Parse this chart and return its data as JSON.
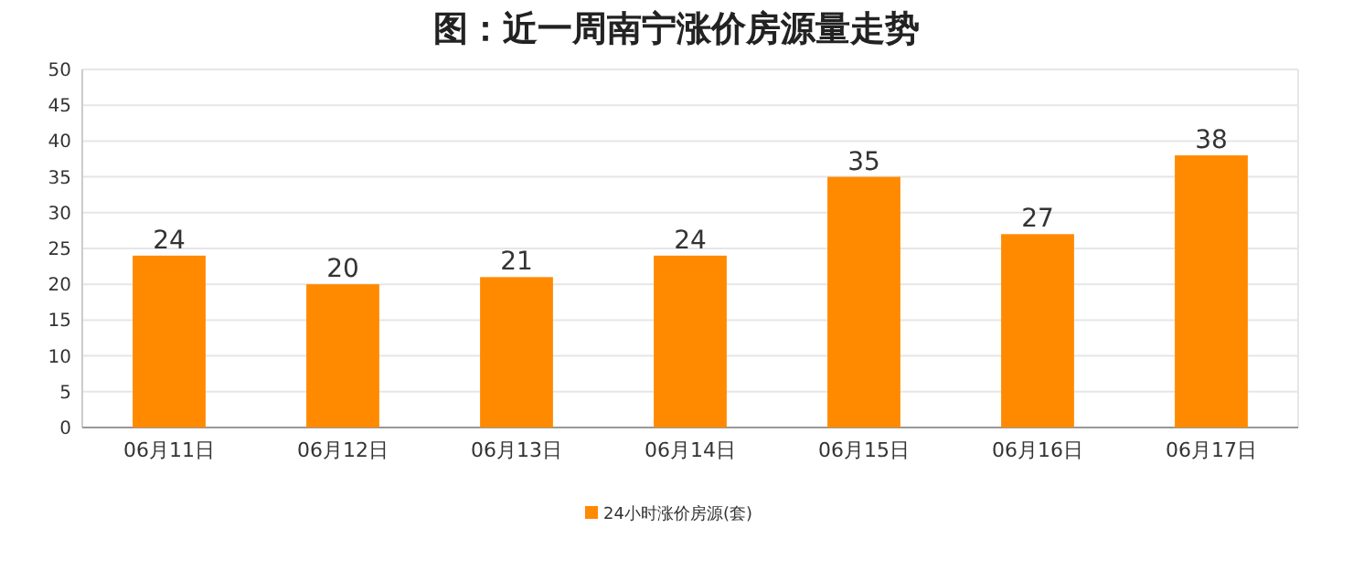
{
  "chart_data": {
    "type": "bar",
    "title": "图：近一周南宁涨价房源量走势",
    "categories": [
      "06月11日",
      "06月12日",
      "06月13日",
      "06月14日",
      "06月15日",
      "06月16日",
      "06月17日"
    ],
    "series": [
      {
        "name": "24小时涨价房源(套)",
        "color": "#ff8a00",
        "values": [
          24,
          20,
          21,
          24,
          35,
          27,
          38
        ]
      }
    ],
    "ylim": [
      0,
      50
    ],
    "yticks": [
      0,
      5,
      10,
      15,
      20,
      25,
      30,
      35,
      40,
      45,
      50
    ],
    "grid": "y",
    "data_labels": true,
    "legend": "bottom"
  }
}
